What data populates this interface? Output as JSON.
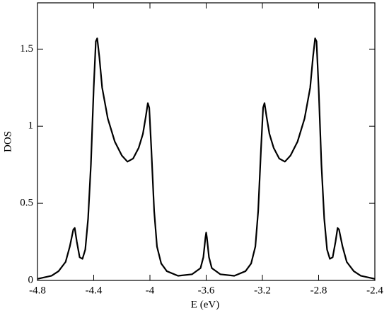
{
  "chart_data": {
    "type": "line",
    "xlabel": "E (eV)",
    "ylabel": "DOS",
    "xlim": [
      -4.8,
      -2.4
    ],
    "xticks": [
      -4.8,
      -4.4,
      -4,
      -3.6,
      -3.2,
      -2.8,
      -2.4
    ],
    "ylim": [
      0,
      1.8
    ],
    "yticks": [
      0,
      0.5,
      1,
      1.5
    ],
    "series": [
      {
        "color": "#000000",
        "x": [
          -4.8,
          -4.7,
          -4.65,
          -4.6,
          -4.57,
          -4.545,
          -4.535,
          -4.52,
          -4.5,
          -4.48,
          -4.46,
          -4.44,
          -4.42,
          -4.4,
          -4.385,
          -4.375,
          -4.36,
          -4.34,
          -4.3,
          -4.25,
          -4.2,
          -4.16,
          -4.12,
          -4.08,
          -4.05,
          -4.03,
          -4.015,
          -4.005,
          -3.99,
          -3.97,
          -3.95,
          -3.92,
          -3.88,
          -3.8,
          -3.7,
          -3.64,
          -3.62,
          -3.605,
          -3.6,
          -3.595,
          -3.58,
          -3.56,
          -3.5,
          -3.4,
          -3.32,
          -3.28,
          -3.25,
          -3.23,
          -3.21,
          -3.195,
          -3.185,
          -3.17,
          -3.15,
          -3.12,
          -3.08,
          -3.04,
          -3.0,
          -2.95,
          -2.9,
          -2.86,
          -2.84,
          -2.825,
          -2.815,
          -2.8,
          -2.78,
          -2.76,
          -2.74,
          -2.72,
          -2.7,
          -2.68,
          -2.665,
          -2.655,
          -2.63,
          -2.6,
          -2.55,
          -2.5,
          -2.4
        ],
        "values": [
          0.01,
          0.03,
          0.06,
          0.12,
          0.22,
          0.33,
          0.34,
          0.25,
          0.15,
          0.14,
          0.2,
          0.4,
          0.75,
          1.25,
          1.55,
          1.57,
          1.45,
          1.25,
          1.05,
          0.9,
          0.81,
          0.77,
          0.79,
          0.86,
          0.95,
          1.06,
          1.15,
          1.12,
          0.85,
          0.45,
          0.22,
          0.11,
          0.06,
          0.03,
          0.04,
          0.08,
          0.15,
          0.28,
          0.31,
          0.28,
          0.15,
          0.08,
          0.04,
          0.03,
          0.06,
          0.11,
          0.22,
          0.45,
          0.85,
          1.12,
          1.15,
          1.06,
          0.95,
          0.86,
          0.79,
          0.77,
          0.81,
          0.9,
          1.05,
          1.25,
          1.45,
          1.57,
          1.55,
          1.25,
          0.75,
          0.4,
          0.2,
          0.14,
          0.15,
          0.25,
          0.34,
          0.33,
          0.22,
          0.12,
          0.06,
          0.03,
          0.01
        ]
      }
    ]
  }
}
